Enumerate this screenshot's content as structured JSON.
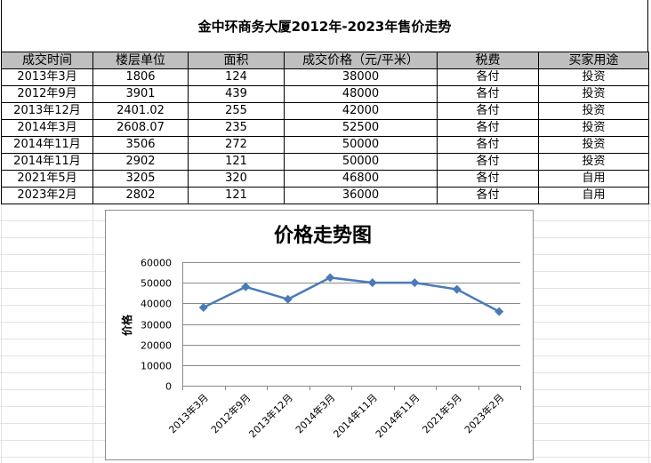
{
  "title": "金中环商务大厦2012年-2023年售价走势",
  "table": {
    "headers": [
      "成交时间",
      "楼层单位",
      "面积",
      "成交价格（元/平米）",
      "税费",
      "买家用途"
    ],
    "rows": [
      [
        "2013年3月",
        "1806",
        "124",
        "38000",
        "各付",
        "投资"
      ],
      [
        "2012年9月",
        "3901",
        "439",
        "48000",
        "各付",
        "投资"
      ],
      [
        "2013年12月",
        "2401.02",
        "255",
        "42000",
        "各付",
        "投资"
      ],
      [
        "2014年3月",
        "2608.07",
        "235",
        "52500",
        "各付",
        "投资"
      ],
      [
        "2014年11月",
        "3506",
        "272",
        "50000",
        "各付",
        "投资"
      ],
      [
        "2014年11月",
        "2902",
        "121",
        "50000",
        "各付",
        "投资"
      ],
      [
        "2021年5月",
        "3205",
        "320",
        "46800",
        "各付",
        "自用"
      ],
      [
        "2023年2月",
        "2802",
        "121",
        "36000",
        "各付",
        "自用"
      ]
    ]
  },
  "chart_data": {
    "type": "line",
    "title": "价格走势图",
    "xlabel": "",
    "ylabel": "价格",
    "categories": [
      "2013年3月",
      "2012年9月",
      "2013年12月",
      "2014年3月",
      "2014年11月",
      "2014年11月",
      "2021年5月",
      "2023年2月"
    ],
    "series": [
      {
        "values": [
          38000,
          48000,
          42000,
          52500,
          50000,
          50000,
          46800,
          36000
        ]
      }
    ],
    "ylim": [
      0,
      60000
    ],
    "yticks": [
      0,
      10000,
      20000,
      30000,
      40000,
      50000,
      60000
    ],
    "grid": true,
    "legend": "none",
    "line_color": "#4a7bb7"
  }
}
